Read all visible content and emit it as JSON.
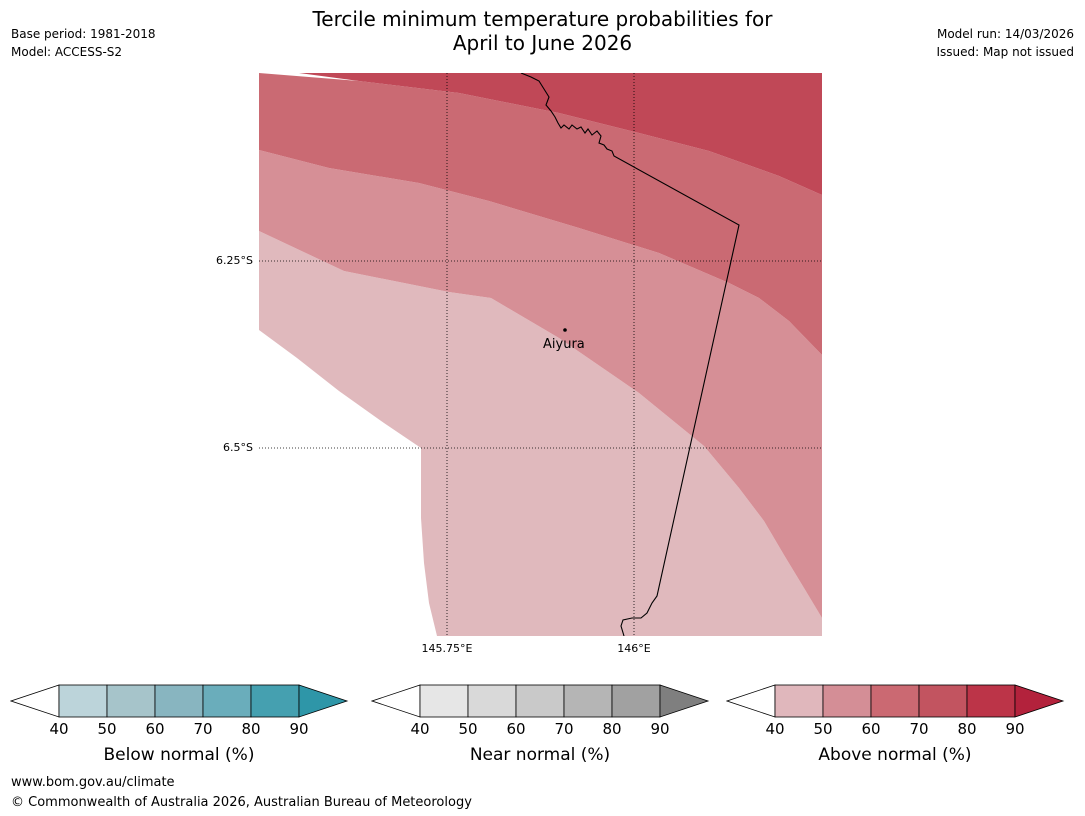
{
  "header": {
    "title_line1": "Tercile minimum temperature probabilities for",
    "title_line2": "April to June 2026",
    "base_period": "Base period: 1981-2018",
    "model": "Model: ACCESS-S2",
    "model_run": "Model run: 14/03/2026",
    "issued": "Issued: Map not issued"
  },
  "map": {
    "latitude_labels": [
      "6.25°S",
      "6.5°S"
    ],
    "longitude_labels": [
      "145.75°E",
      "146°E"
    ],
    "place": {
      "name": "Aiyura"
    },
    "zones_description_classes": [
      "40-50",
      "50-60",
      "60-70",
      "70-80"
    ]
  },
  "colorbars": [
    {
      "title": "Below normal (%)",
      "ticks": [
        "40",
        "50",
        "60",
        "70",
        "80",
        "90"
      ],
      "colors": [
        "#bcd4da",
        "#a6c4ca",
        "#88b5c0",
        "#6aadbb",
        "#45a0b0"
      ],
      "extend_color": "#2e96a8"
    },
    {
      "title": "Near normal (%)",
      "ticks": [
        "40",
        "50",
        "60",
        "70",
        "80",
        "90"
      ],
      "colors": [
        "#e6e6e6",
        "#d9d9d9",
        "#c9c9c9",
        "#b5b5b5",
        "#a1a1a1"
      ],
      "extend_color": "#7f7f7f"
    },
    {
      "title": "Above normal (%)",
      "ticks": [
        "40",
        "50",
        "60",
        "70",
        "80",
        "90"
      ],
      "colors": [
        "#e0b7bc",
        "#d48e96",
        "#cb6972",
        "#c25460",
        "#bc3448"
      ],
      "extend_color": "#b3223c"
    }
  ],
  "footer": {
    "website": "www.bom.gov.au/climate",
    "copyright": "© Commonwealth of Australia 2026, Australian Bureau of Meteorology"
  }
}
